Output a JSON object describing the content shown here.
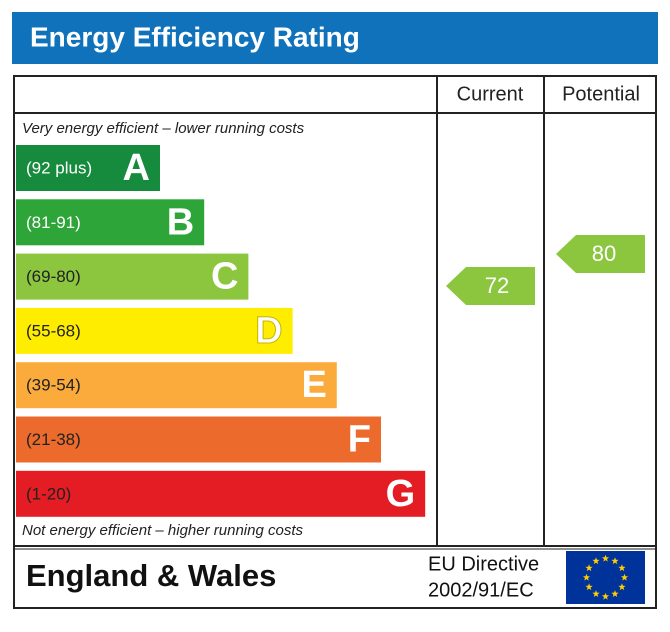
{
  "title": "Energy Efficiency Rating",
  "columns": [
    "Current",
    "Potential"
  ],
  "top_note": "Very energy efficient – lower running costs",
  "bands": [
    {
      "range": "(92 plus)",
      "letter": "A",
      "color": "#168b3e"
    },
    {
      "range": "(81-91)",
      "letter": "B",
      "color": "#2ea539"
    },
    {
      "range": "(69-80)",
      "letter": "C",
      "color": "#8cc63f"
    },
    {
      "range": "(55-68)",
      "letter": "D",
      "color": "#ffed00"
    },
    {
      "range": "(39-54)",
      "letter": "E",
      "color": "#fbab3b"
    },
    {
      "range": "(21-38)",
      "letter": "F",
      "color": "#ec6a2c"
    },
    {
      "range": "(1-20)",
      "letter": "G",
      "color": "#e31d23"
    }
  ],
  "bottom_note": "Not energy efficient – higher running costs",
  "current": 72,
  "potential": 80,
  "footer": {
    "region": "England & Wales",
    "directive": [
      "EU Directive",
      "2002/91/EC"
    ]
  }
}
